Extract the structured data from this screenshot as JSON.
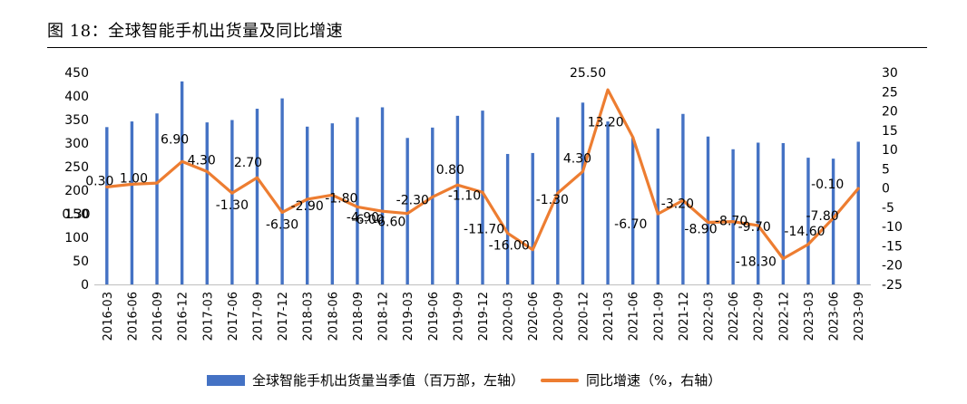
{
  "header": {
    "title": "图 18：全球智能手机出货量及同比增速"
  },
  "chart_data": {
    "type": "bar",
    "categories": [
      "2016-03",
      "2016-06",
      "2016-09",
      "2016-12",
      "2017-03",
      "2017-06",
      "2017-09",
      "2017-12",
      "2018-03",
      "2018-06",
      "2018-09",
      "2018-12",
      "2019-03",
      "2019-06",
      "2019-09",
      "2019-12",
      "2020-03",
      "2020-06",
      "2020-09",
      "2020-12",
      "2021-03",
      "2021-06",
      "2021-09",
      "2021-12",
      "2022-03",
      "2022-06",
      "2022-09",
      "2022-12",
      "2023-03",
      "2023-06",
      "2023-09"
    ],
    "series": [
      {
        "name": "全球智能手机出货量当季值（百万部，左轴）",
        "type": "bar",
        "axis": "left",
        "color": "#4472C4",
        "values": [
          334,
          346,
          363,
          431,
          344,
          349,
          373,
          395,
          335,
          342,
          355,
          376,
          311,
          333,
          358,
          369,
          277,
          279,
          355,
          386,
          346,
          313,
          331,
          362,
          314,
          287,
          301,
          300,
          269,
          267,
          303
        ]
      },
      {
        "name": "同比增速（%，右轴）",
        "type": "line",
        "axis": "right",
        "color": "#ED7D31",
        "values": [
          0.3,
          1.0,
          1.3,
          6.9,
          4.3,
          -1.3,
          2.7,
          -6.3,
          -2.9,
          -1.8,
          -4.9,
          -6.0,
          -6.6,
          -2.3,
          0.8,
          -1.1,
          -11.7,
          -16.0,
          -1.3,
          4.3,
          25.5,
          13.2,
          -6.7,
          -3.2,
          -8.9,
          -8.7,
          -9.7,
          -18.3,
          -14.6,
          -7.8,
          -0.1
        ],
        "labels": [
          "0.30",
          "1.00",
          "",
          "6.90",
          "4.30",
          "-1.30",
          "2.70",
          "-6.30",
          "-2.90",
          "-1.80",
          "-4.90",
          "-6.00",
          "-6.60",
          "-2.30",
          "0.80",
          "-1.10",
          "-11.70",
          "-16.00",
          "-1.30",
          "4.30",
          "25.50",
          "13.20",
          "-6.70",
          "-3.20",
          "-8.90",
          "-8.70",
          "-9.70",
          "-18.30",
          "-14.60",
          "-7.80",
          "-0.10"
        ]
      }
    ],
    "y_left": {
      "min": 0,
      "max": 450,
      "step": 50,
      "ticks": [
        "0",
        "50",
        "100",
        "150",
        "200",
        "250",
        "300",
        "350",
        "400",
        "450"
      ]
    },
    "y_right": {
      "min": -25,
      "max": 30,
      "step": 5,
      "ticks": [
        "-25",
        "-20",
        "-15",
        "-10",
        "-5",
        "0",
        "5",
        "10",
        "15",
        "20",
        "25",
        "30"
      ]
    },
    "stray_label": "0.30",
    "grid": false,
    "legend_position": "bottom"
  }
}
